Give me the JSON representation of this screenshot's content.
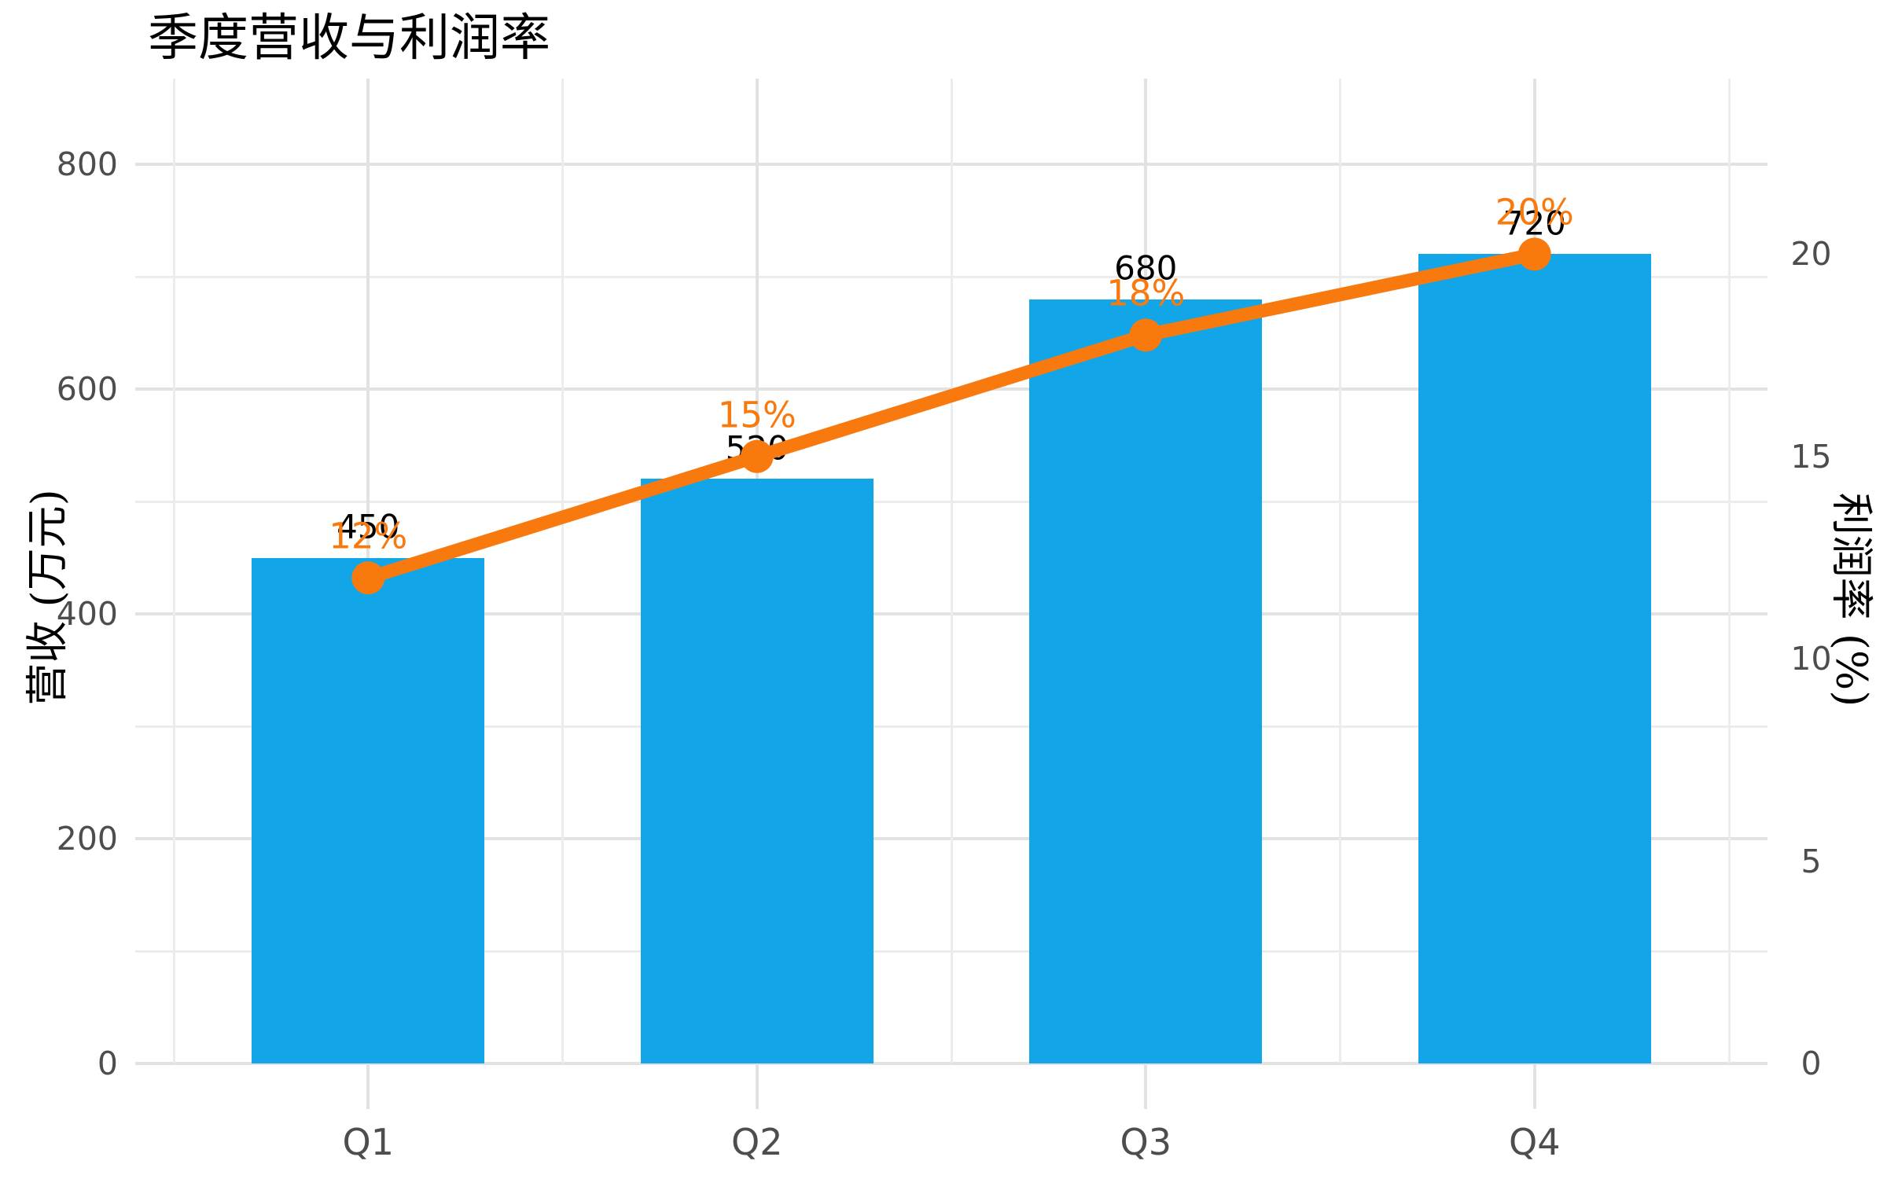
{
  "title": "季度营收与利润率",
  "colors": {
    "bar": "#12A5E8",
    "line": "#F87A0E",
    "bar_label": "#000000",
    "pct_label": "#F87A0E",
    "tick_label": "#4D4D4D",
    "grid_major": "#E2E2E2",
    "grid_minor": "#ECECEC",
    "tick_mark": "#E2E2E2",
    "background": "#FFFFFF"
  },
  "chart_data": {
    "type": "bar+line",
    "title": "季度营收与利润率",
    "categories": [
      "Q1",
      "Q2",
      "Q3",
      "Q4"
    ],
    "series": [
      {
        "name": "营收",
        "type": "bar",
        "axis": "left",
        "values": [
          450,
          520,
          680,
          720
        ],
        "data_labels": [
          "450",
          "520",
          "680",
          "720"
        ],
        "color": "#12A5E8"
      },
      {
        "name": "利润率",
        "type": "line",
        "axis": "right",
        "values": [
          12,
          15,
          18,
          20
        ],
        "data_labels": [
          "12%",
          "15%",
          "18%",
          "20%"
        ],
        "color": "#F87A0E"
      }
    ],
    "left_axis": {
      "title": "营收 (万元)",
      "tick_values": [
        0,
        200,
        400,
        600,
        800
      ],
      "tick_labels": [
        "0",
        "200",
        "400",
        "600",
        "800"
      ],
      "minor_tick_values": [
        100,
        300,
        500,
        700
      ],
      "range": [
        0,
        876
      ]
    },
    "right_axis": {
      "title": "利润率 (%)",
      "tick_values": [
        0,
        5,
        10,
        15,
        20
      ],
      "tick_labels": [
        "0",
        "5",
        "10",
        "15",
        "20"
      ],
      "left_units_per_percent": 36,
      "range": [
        0,
        24.3
      ]
    },
    "x_axis": {
      "tick_labels": [
        "Q1",
        "Q2",
        "Q3",
        "Q4"
      ]
    },
    "grid": {
      "horizontal": "major at 200-unit steps, minor at 100-unit steps",
      "vertical": "major at category centers, minor between categories"
    },
    "legend": "none"
  }
}
